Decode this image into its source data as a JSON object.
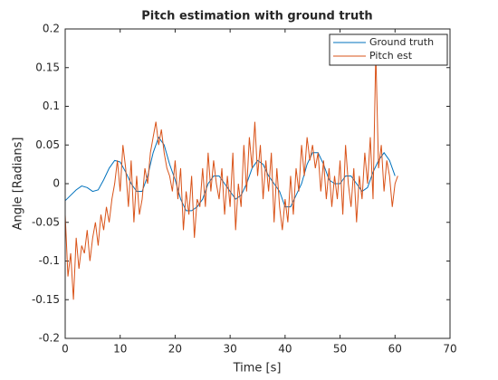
{
  "chart_data": {
    "type": "line",
    "title": "Pitch estimation with ground truth",
    "x_label": "Time [s]",
    "y_label": "Angle [Radians]",
    "xlim": [
      0,
      70
    ],
    "xticks": [
      0,
      10,
      20,
      30,
      40,
      50,
      60,
      70
    ],
    "ylim": [
      -0.2,
      0.2
    ],
    "yticks": [
      -0.2,
      -0.15,
      -0.1,
      -0.05,
      0,
      0.05,
      0.1,
      0.15,
      0.2
    ],
    "grid": false,
    "legend": "upper right",
    "series": [
      {
        "name": "Ground truth",
        "color": "#0072bd",
        "x": [
          0,
          1,
          2,
          3,
          4,
          5,
          6,
          7,
          8,
          9,
          10,
          11,
          12,
          13,
          14,
          15,
          16,
          17,
          18,
          19,
          20,
          21,
          22,
          23,
          24,
          25,
          26,
          27,
          28,
          29,
          30,
          31,
          32,
          33,
          34,
          35,
          36,
          37,
          38,
          39,
          40,
          41,
          42,
          43,
          44,
          45,
          46,
          47,
          48,
          49,
          50,
          51,
          52,
          53,
          54,
          55,
          56,
          57,
          58,
          59,
          60
        ],
        "values": [
          -0.022,
          -0.015,
          -0.008,
          -0.003,
          -0.005,
          -0.01,
          -0.008,
          0.005,
          0.02,
          0.03,
          0.028,
          0.015,
          0.0,
          -0.01,
          -0.01,
          0.01,
          0.04,
          0.06,
          0.05,
          0.025,
          0.005,
          -0.02,
          -0.035,
          -0.035,
          -0.03,
          -0.02,
          0.0,
          0.01,
          0.01,
          0.0,
          -0.01,
          -0.02,
          -0.015,
          0.0,
          0.02,
          0.03,
          0.025,
          0.01,
          0.0,
          -0.01,
          -0.03,
          -0.03,
          -0.015,
          0.0,
          0.025,
          0.04,
          0.04,
          0.025,
          0.005,
          0.0,
          0.0,
          0.01,
          0.01,
          0.0,
          -0.01,
          -0.005,
          0.015,
          0.03,
          0.04,
          0.03,
          0.01
        ]
      },
      {
        "name": "Pitch est",
        "color": "#d95319",
        "x": [
          0,
          0.5,
          1,
          1.5,
          2,
          2.5,
          3,
          3.5,
          4,
          4.5,
          5,
          5.5,
          6,
          6.5,
          7,
          7.5,
          8,
          8.5,
          9,
          9.5,
          10,
          10.5,
          11,
          11.5,
          12,
          12.5,
          13,
          13.5,
          14,
          14.5,
          15,
          15.5,
          16,
          16.5,
          17,
          17.5,
          18,
          18.5,
          19,
          19.5,
          20,
          20.5,
          21,
          21.5,
          22,
          22.5,
          23,
          23.5,
          24,
          24.5,
          25,
          25.5,
          26,
          26.5,
          27,
          27.5,
          28,
          28.5,
          29,
          29.5,
          30,
          30.5,
          31,
          31.5,
          32,
          32.5,
          33,
          33.5,
          34,
          34.5,
          35,
          35.5,
          36,
          36.5,
          37,
          37.5,
          38,
          38.5,
          39,
          39.5,
          40,
          40.5,
          41,
          41.5,
          42,
          42.5,
          43,
          43.5,
          44,
          44.5,
          45,
          45.5,
          46,
          46.5,
          47,
          47.5,
          48,
          48.5,
          49,
          49.5,
          50,
          50.5,
          51,
          51.5,
          52,
          52.5,
          53,
          53.5,
          54,
          54.5,
          55,
          55.5,
          56,
          56.5,
          57,
          57.5,
          58,
          58.5,
          59,
          59.5,
          60,
          60.5
        ],
        "values": [
          -0.04,
          -0.12,
          -0.09,
          -0.15,
          -0.07,
          -0.11,
          -0.08,
          -0.09,
          -0.06,
          -0.1,
          -0.07,
          -0.05,
          -0.08,
          -0.04,
          -0.06,
          -0.03,
          -0.05,
          -0.02,
          0.0,
          0.03,
          -0.01,
          0.05,
          0.02,
          -0.03,
          0.03,
          -0.05,
          0.01,
          -0.04,
          -0.02,
          0.02,
          0.0,
          0.04,
          0.06,
          0.08,
          0.05,
          0.07,
          0.04,
          0.02,
          0.01,
          -0.01,
          0.03,
          -0.02,
          0.02,
          -0.06,
          -0.01,
          -0.04,
          0.01,
          -0.07,
          -0.02,
          -0.03,
          0.02,
          -0.03,
          0.04,
          -0.01,
          0.03,
          0.0,
          -0.02,
          0.02,
          -0.04,
          0.01,
          -0.03,
          0.04,
          -0.06,
          0.0,
          -0.03,
          0.05,
          -0.01,
          0.06,
          0.02,
          0.08,
          0.01,
          0.05,
          -0.02,
          0.03,
          -0.01,
          0.04,
          -0.05,
          0.02,
          -0.03,
          -0.06,
          -0.02,
          -0.05,
          0.01,
          -0.04,
          0.02,
          -0.01,
          0.05,
          0.01,
          0.06,
          0.03,
          0.05,
          0.02,
          0.04,
          -0.01,
          0.03,
          -0.02,
          0.02,
          -0.03,
          0.01,
          -0.02,
          0.03,
          -0.04,
          0.05,
          0.0,
          -0.03,
          0.02,
          -0.05,
          0.01,
          -0.02,
          0.04,
          0.0,
          0.06,
          -0.02,
          0.17,
          0.02,
          0.05,
          -0.01,
          0.03,
          0.01,
          -0.03,
          0.0,
          0.01
        ]
      }
    ]
  }
}
